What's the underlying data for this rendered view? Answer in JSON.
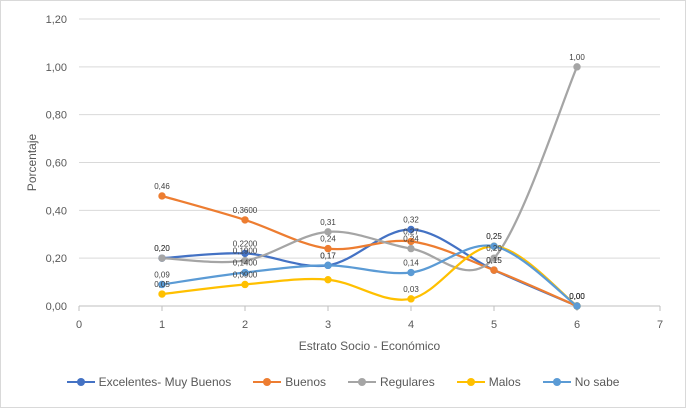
{
  "chart_data": {
    "type": "line",
    "smooth": true,
    "xlabel": "Estrato Socio - Económico",
    "ylabel": "Porcentaje",
    "xlim": [
      0,
      7
    ],
    "ylim": [
      0,
      1.2
    ],
    "x_ticks": [
      "0",
      "1",
      "2",
      "3",
      "4",
      "5",
      "6",
      "7"
    ],
    "y_ticks": [
      "0,00",
      "0,20",
      "0,40",
      "0,60",
      "0,80",
      "1,00",
      "1,20"
    ],
    "grid": true,
    "legend_position": "bottom",
    "series": [
      {
        "name": "Excelentes- Muy Buenos",
        "color": "#4472c4",
        "x": [
          1,
          2,
          3,
          4,
          5,
          6
        ],
        "values": [
          0.2,
          0.22,
          0.17,
          0.32,
          0.15,
          0.0
        ],
        "labels": [
          "0,20",
          "0,2200",
          "0,17",
          "0,32",
          "0,15",
          "0,00"
        ]
      },
      {
        "name": "Buenos",
        "color": "#ed7d31",
        "x": [
          1,
          2,
          3,
          4,
          5,
          6
        ],
        "values": [
          0.46,
          0.36,
          0.24,
          0.27,
          0.15,
          0.0
        ],
        "labels": [
          "0,46",
          "0,3600",
          "0,24",
          "0,27",
          "0,15",
          "0,00"
        ]
      },
      {
        "name": "Regulares",
        "color": "#a5a5a5",
        "x": [
          1,
          2,
          3,
          4,
          5,
          6
        ],
        "values": [
          0.2,
          0.19,
          0.31,
          0.24,
          0.2,
          1.0
        ],
        "labels": [
          "0,20",
          "0,1900",
          "0,31",
          "0,24",
          "0,20",
          "1,00"
        ]
      },
      {
        "name": "Malos",
        "color": "#ffc000",
        "x": [
          1,
          2,
          3,
          4,
          5,
          6
        ],
        "values": [
          0.05,
          0.09,
          0.11,
          0.03,
          0.25,
          0.0
        ],
        "labels": [
          "0,05",
          "0,0900",
          "",
          "0,03",
          "0,25",
          "0,00"
        ]
      },
      {
        "name": "No sabe",
        "color": "#5b9bd5",
        "x": [
          1,
          2,
          3,
          4,
          5,
          6
        ],
        "values": [
          0.09,
          0.14,
          0.17,
          0.14,
          0.25,
          0.0
        ],
        "labels": [
          "0,09",
          "0,1400",
          "0,17",
          "0,14",
          "0,25",
          "0,00"
        ]
      }
    ]
  }
}
